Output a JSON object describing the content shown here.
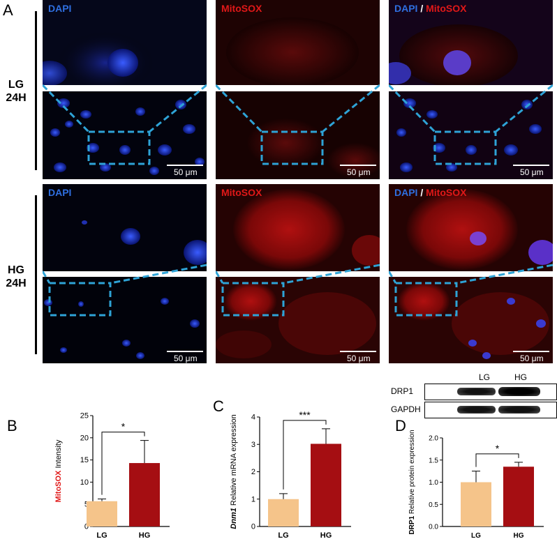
{
  "panel_letters": {
    "a": "A",
    "b": "B",
    "c": "C",
    "d": "D"
  },
  "groups": [
    {
      "label_line1": "LG",
      "label_line2": "24H"
    },
    {
      "label_line1": "HG",
      "label_line2": "24H"
    }
  ],
  "channels": {
    "dapi": "DAPI",
    "separator": "/",
    "mitosox": "MitoSOX"
  },
  "scale_bar": "50 μm",
  "colors": {
    "dapi_label": "#2f6fe0",
    "mitosox_label": "#e01818",
    "lg_bar": "#f5c48a",
    "hg_bar": "#a50e12",
    "zoom_dash": "#2ea3d6"
  },
  "western_blot": {
    "lanes": [
      "LG",
      "HG"
    ],
    "bands": [
      "DRP1",
      "GAPDH"
    ]
  },
  "chart_data": [
    {
      "type": "bar",
      "categories": [
        "LG",
        "HG"
      ],
      "values": [
        5.7,
        14.3
      ],
      "errors": [
        0.5,
        5.1
      ],
      "significance": "*",
      "ylabel_prefix": "MitoSOX",
      "ylabel_suffix": " Intensity",
      "ylim": [
        0,
        25
      ],
      "yticks": [
        "0",
        "5",
        "10",
        "15",
        "20",
        "25"
      ]
    },
    {
      "type": "bar",
      "categories": [
        "LG",
        "HG"
      ],
      "values": [
        1.0,
        3.02
      ],
      "errors": [
        0.2,
        0.55
      ],
      "significance": "***",
      "ylabel_prefix": "Dnm1",
      "ylabel_suffix": " Relative mRNA expression",
      "ylim": [
        0,
        4
      ],
      "yticks": [
        "0",
        "1",
        "2",
        "3",
        "4"
      ]
    },
    {
      "type": "bar",
      "categories": [
        "LG",
        "HG"
      ],
      "values": [
        1.0,
        1.35
      ],
      "errors": [
        0.25,
        0.1
      ],
      "significance": "*",
      "ylabel_prefix": "DRP1",
      "ylabel_suffix": " Relative protein expression",
      "ylim": [
        0,
        2.0
      ],
      "yticks": [
        "0.0",
        "0.5",
        "1.0",
        "1.5",
        "2.0"
      ]
    }
  ]
}
